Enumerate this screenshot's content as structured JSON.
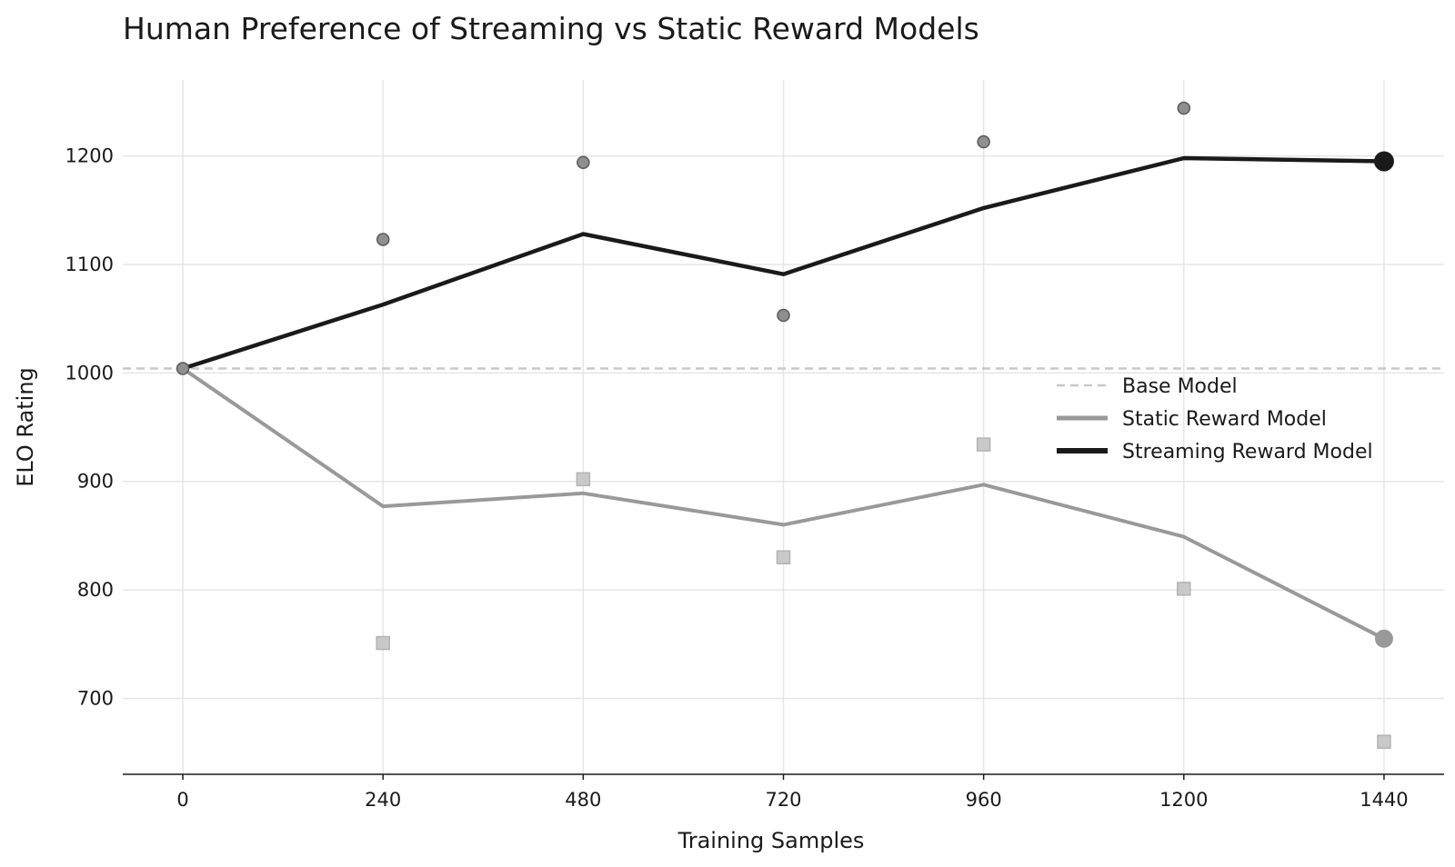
{
  "chart_data": {
    "type": "line",
    "title": "Human Preference of Streaming vs Static Reward Models",
    "xlabel": "Training Samples",
    "ylabel": "ELO Rating",
    "x": [
      0,
      240,
      480,
      720,
      960,
      1200,
      1440
    ],
    "xticks": [
      "0",
      "240",
      "480",
      "720",
      "960",
      "1200",
      "1440"
    ],
    "yticks": [
      "700",
      "800",
      "900",
      "1000",
      "1100",
      "1200"
    ],
    "xlim": [
      -72,
      1512
    ],
    "ylim": [
      630,
      1270
    ],
    "grid": true,
    "legend_position": "right",
    "baseline": {
      "name": "Base Model",
      "value": 1004,
      "color": "#c8c8c8"
    },
    "series": [
      {
        "name": "Static Reward Model",
        "color": "#999999",
        "values": [
          1004,
          877,
          889,
          860,
          897,
          849,
          755
        ],
        "scatter": [
          1004,
          751,
          902,
          830,
          934,
          801,
          660
        ]
      },
      {
        "name": "Streaming Reward Model",
        "color": "#1a1a1a",
        "values": [
          1004,
          1063,
          1128,
          1091,
          1152,
          1198,
          1195
        ],
        "scatter": [
          1004,
          1123,
          1194,
          1053,
          1213,
          1244,
          1195
        ]
      }
    ]
  }
}
